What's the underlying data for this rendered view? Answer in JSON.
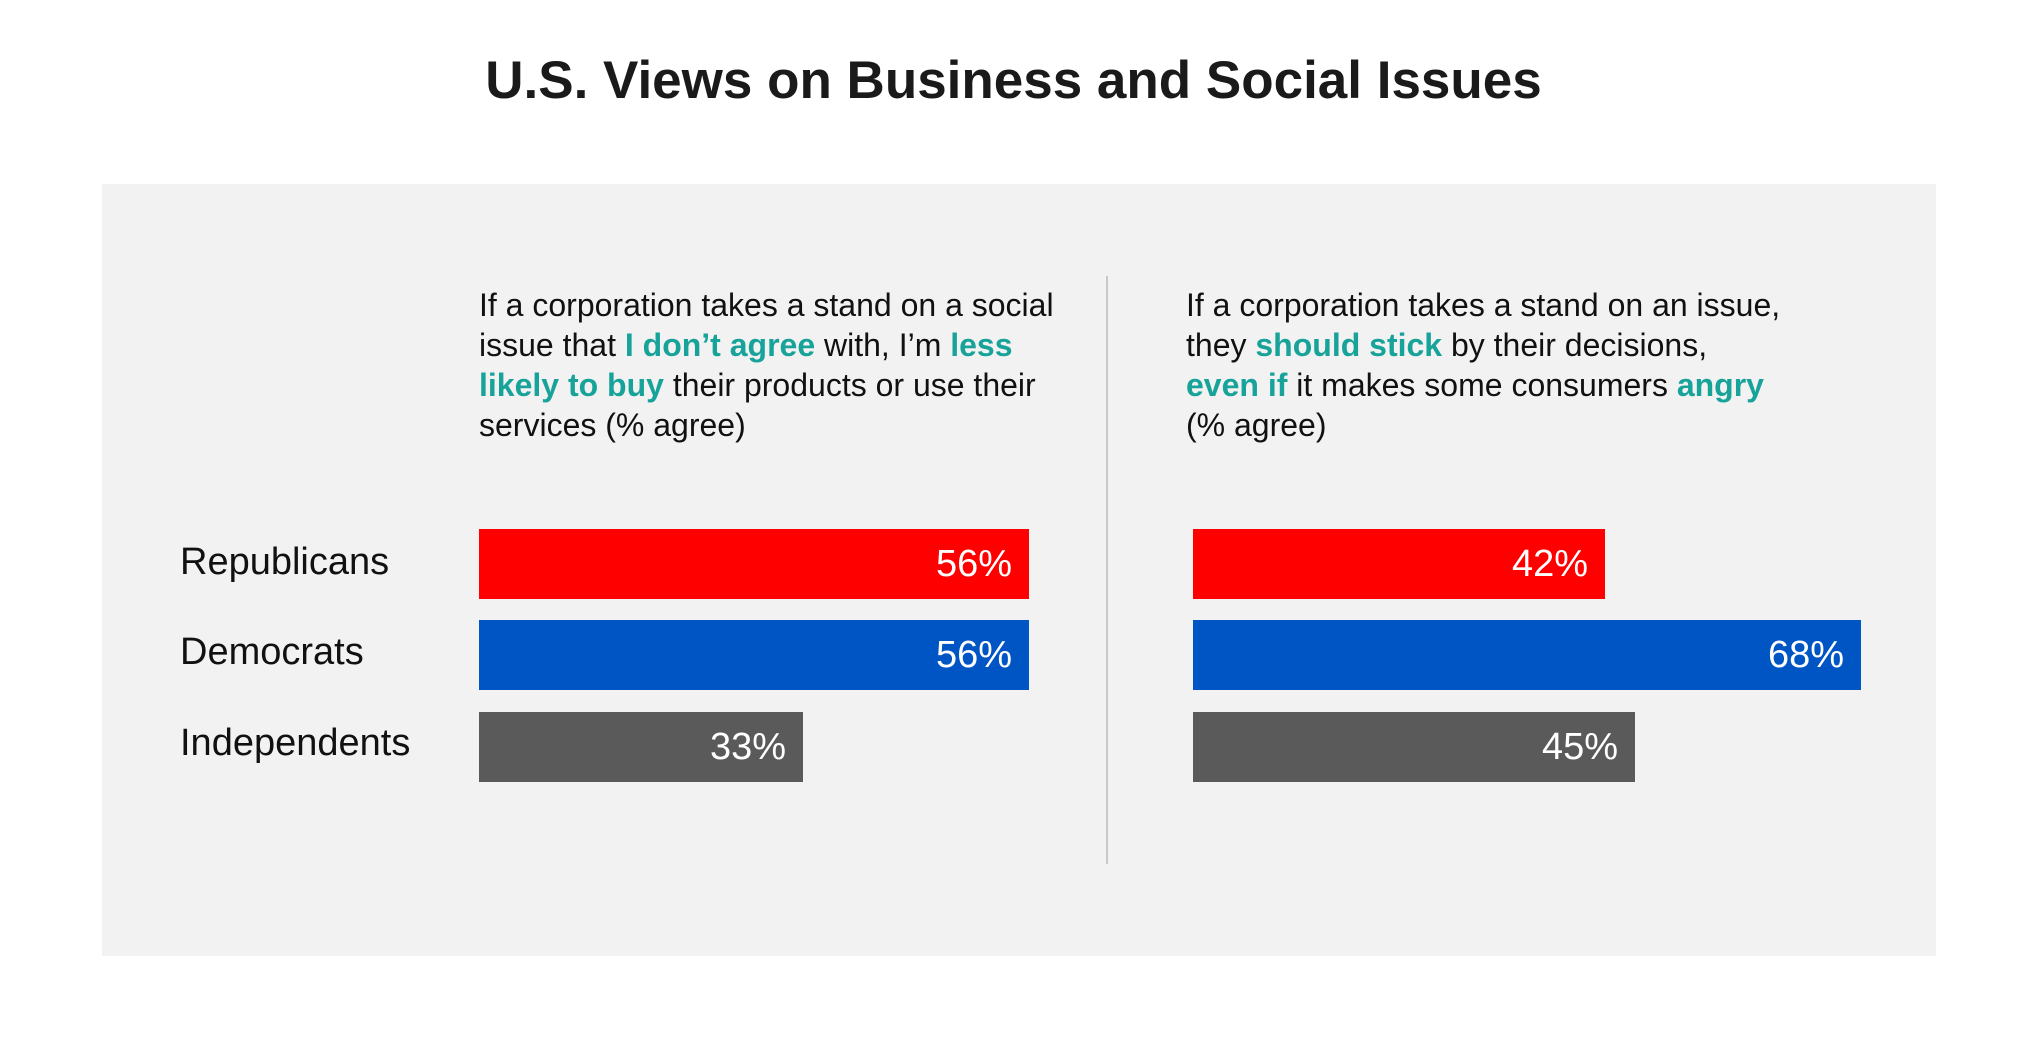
{
  "title": "U.S. Views on Business and Social Issues",
  "colors": {
    "Republicans": "#ff0000",
    "Democrats": "#0055c4",
    "Independents": "#5a5a5a",
    "highlight": "#17a39a",
    "panel": "#f2f2f2"
  },
  "questions": {
    "left": {
      "t1": "If a corporation takes a stand on a social issue that ",
      "h1": "I don’t agree",
      "t2": " with, I’m ",
      "h2": "less likely to buy",
      "t3": " their products or use their services (% agree)"
    },
    "right": {
      "t1": "If a corporation takes a stand on an issue, they ",
      "h1": "should stick",
      "t2": " by their decisions, ",
      "h2": "even if",
      "t3": " it makes some consumers ",
      "h3": "angry",
      "t4": " (% agree)"
    }
  },
  "chart_data": [
    {
      "type": "bar",
      "orientation": "horizontal",
      "title": "If a corporation takes a stand on a social issue that I don’t agree with, I’m less likely to buy their products or use their services (% agree)",
      "categories": [
        "Republicans",
        "Democrats",
        "Independents"
      ],
      "values": [
        56,
        56,
        33
      ],
      "labels": [
        "56%",
        "56%",
        "33%"
      ],
      "unit": "%",
      "xlim": [
        0,
        100
      ]
    },
    {
      "type": "bar",
      "orientation": "horizontal",
      "title": "If a corporation takes a stand on an issue, they should stick by their decisions, even if it makes some consumers angry (% agree)",
      "categories": [
        "Republicans",
        "Democrats",
        "Independents"
      ],
      "values": [
        42,
        68,
        45
      ],
      "labels": [
        "42%",
        "68%",
        "45%"
      ],
      "unit": "%",
      "xlim": [
        0,
        100
      ]
    }
  ]
}
